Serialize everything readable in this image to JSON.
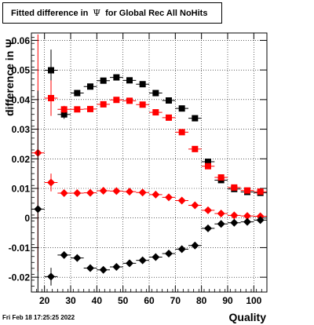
{
  "title": {
    "prefix": "Fitted difference in",
    "symbol": "Ψ",
    "suffix": "for Global Rec All NoHits"
  },
  "footer": {
    "timestamp": "Fri Feb 18 17:25:25 2022"
  },
  "chart_data": {
    "type": "scatter",
    "xlabel": "Quality",
    "ylabel": "difference in Ψ",
    "xlim": [
      15,
      105
    ],
    "ylim": [
      -0.025,
      0.0625
    ],
    "x_ticks": [
      20,
      30,
      40,
      50,
      60,
      70,
      80,
      90,
      100
    ],
    "y_ticks": [
      -0.02,
      -0.01,
      0,
      0.01,
      0.02,
      0.03,
      0.04,
      0.05,
      0.06
    ],
    "y_tick_labels": [
      "-0.02",
      "-0.01",
      "0",
      "0.01",
      "0.02",
      "0.03",
      "0.04",
      "0.05",
      "0.06"
    ],
    "grid": true,
    "x": [
      17.5,
      22.5,
      27.5,
      32.5,
      37.5,
      42.5,
      47.5,
      52.5,
      57.5,
      62.5,
      67.5,
      72.5,
      77.5,
      82.5,
      87.5,
      92.5,
      97.5,
      102.5
    ],
    "x_error": 2.5,
    "series": [
      {
        "marker": "square",
        "color": "#000000",
        "values": [
          null,
          0.0499,
          0.035,
          0.0422,
          0.0444,
          0.0464,
          0.0475,
          0.0465,
          0.0452,
          0.0422,
          0.0397,
          0.037,
          0.0337,
          0.019,
          0.0128,
          0.0098,
          0.0088,
          0.0085
        ],
        "errors": [
          null,
          0.007,
          0.0015,
          0.001,
          0.001,
          0.0008,
          0.0008,
          0.0008,
          0.0008,
          0.0008,
          0.0008,
          0.0008,
          0.0008,
          0.0008,
          0.0008,
          0.0008,
          0.0008,
          0.0008
        ]
      },
      {
        "marker": "square",
        "color": "#ff0000",
        "values": [
          null,
          0.0405,
          0.0367,
          0.0367,
          0.0368,
          0.0384,
          0.0399,
          0.0396,
          0.0383,
          0.0357,
          0.0339,
          0.029,
          0.0233,
          0.0175,
          0.0137,
          0.0103,
          0.0093,
          0.0089
        ],
        "errors": [
          null,
          0.006,
          0.0012,
          0.0008,
          0.0008,
          0.0008,
          0.0008,
          0.0008,
          0.0008,
          0.0008,
          0.0008,
          0.0008,
          0.0008,
          0.0008,
          0.0008,
          0.0008,
          0.0008,
          0.0008
        ]
      },
      {
        "marker": "diamond",
        "color": "#ff0000",
        "values": [
          0.022,
          0.012,
          0.0084,
          0.0084,
          0.0085,
          0.0092,
          0.0091,
          0.0089,
          0.0086,
          0.0079,
          0.007,
          0.0059,
          0.0043,
          0.0026,
          0.0015,
          0.0009,
          0.0007,
          0.0006
        ],
        "errors": [
          0.04,
          0.003,
          0.0008,
          0.0006,
          0.0006,
          0.0006,
          0.0006,
          0.0006,
          0.0006,
          0.0006,
          0.0006,
          0.0006,
          0.0006,
          0.0006,
          0.0006,
          0.0006,
          0.0006,
          0.0006
        ]
      },
      {
        "marker": "diamond",
        "color": "#000000",
        "values": [
          0.003,
          -0.0198,
          -0.0125,
          -0.0135,
          -0.0169,
          -0.0175,
          -0.0165,
          -0.0153,
          -0.0143,
          -0.0132,
          -0.012,
          -0.0105,
          -0.0093,
          -0.0035,
          -0.002,
          -0.0016,
          -0.0013,
          -0.0007
        ],
        "errors": [
          0.04,
          0.003,
          0.0008,
          0.0006,
          0.0006,
          0.0006,
          0.0006,
          0.0006,
          0.0006,
          0.0006,
          0.0006,
          0.0006,
          0.0006,
          0.0006,
          0.0006,
          0.0006,
          0.0006,
          0.0006
        ]
      }
    ]
  }
}
